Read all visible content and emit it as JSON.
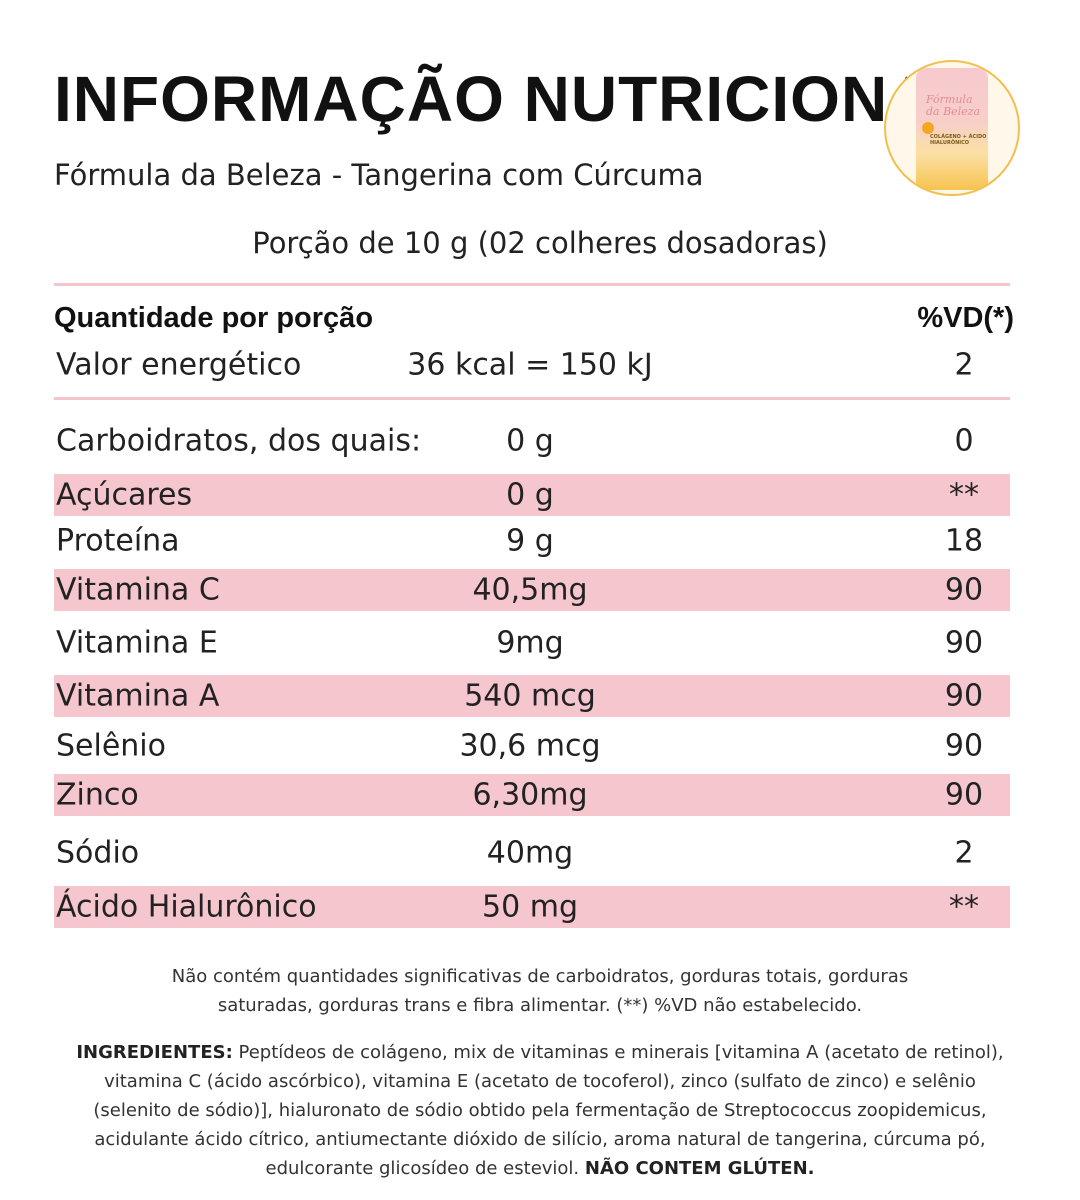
{
  "header": {
    "title": "INFORMAÇÃO NUTRICIONAL",
    "subtitle": "Fórmula da Beleza - Tangerina com Cúrcuma",
    "portion": "Porção de 10 g (02 colheres dosadoras)"
  },
  "product_image": {
    "label_script": "Fórmula da Beleza",
    "label_small": "COLÁGENO + ÁCIDO HIALURÔNICO"
  },
  "table": {
    "header_left": "Quantidade por porção",
    "header_right": "%VD(*)",
    "energy": {
      "name": "Valor energético",
      "amount": "36 kcal = 150 kJ",
      "vd": "2"
    },
    "rows": [
      {
        "name": "Carboidratos, dos quais:",
        "amount": "0 g",
        "vd": "0",
        "shaded": false
      },
      {
        "name": "Açúcares",
        "amount": "0 g",
        "vd": "**",
        "shaded": true
      },
      {
        "name": "Proteína",
        "amount": "9 g",
        "vd": "18",
        "shaded": false
      },
      {
        "name": "Vitamina C",
        "amount": "40,5mg",
        "vd": "90",
        "shaded": true
      },
      {
        "name": "Vitamina E",
        "amount": "9mg",
        "vd": "90",
        "shaded": false
      },
      {
        "name": "Vitamina A",
        "amount": "540 mcg",
        "vd": "90",
        "shaded": true
      },
      {
        "name": "Selênio",
        "amount": "30,6 mcg",
        "vd": "90",
        "shaded": false
      },
      {
        "name": "Zinco",
        "amount": "6,30mg",
        "vd": "90",
        "shaded": true
      },
      {
        "name": "Sódio",
        "amount": "40mg",
        "vd": "2",
        "shaded": false
      },
      {
        "name": "Ácido Hialurônico",
        "amount": "50 mg",
        "vd": "**",
        "shaded": true
      }
    ]
  },
  "footer": {
    "note": "Não contém quantidades significativas de carboidratos, gorduras totais, gorduras saturadas, gorduras trans e fibra alimentar. (**) %VD não estabelecido.",
    "ingredients_label": "INGREDIENTES:",
    "ingredients_text": " Peptídeos de colágeno, mix de vitaminas e minerais [vitamina A (acetato de retinol), vitamina C (ácido ascórbico), vitamina E (acetato de tocoferol), zinco (sulfato de zinco) e selênio (selenito de sódio)], hialuronato de sódio obtido pela fermentação de Streptococcus zoopidemicus, acidulante ácido cítrico, antiumectante dióxido de silício, aroma natural de tangerina, cúrcuma pó, edulcorante glicosídeo de esteviol. ",
    "gluten": "NÃO CONTEM GLÚTEN."
  },
  "colors": {
    "shade": "#f6c6cf",
    "rule": "#f2c6cc",
    "ring": "#f1c04c"
  }
}
